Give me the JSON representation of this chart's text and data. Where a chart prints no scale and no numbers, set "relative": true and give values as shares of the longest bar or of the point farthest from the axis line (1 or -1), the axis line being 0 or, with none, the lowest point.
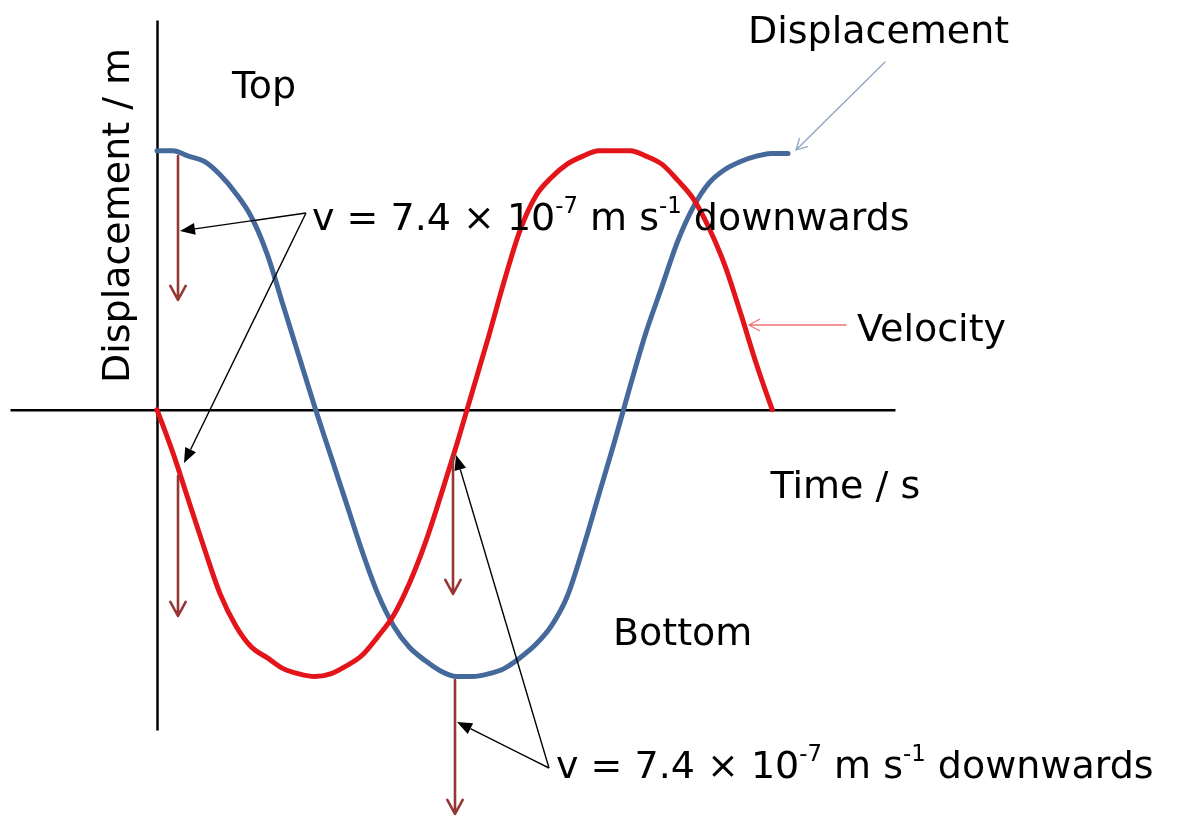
{
  "chart_data": {
    "type": "line",
    "relative": true,
    "xlabel": "Time / s",
    "ylabel": "Displacement / m",
    "categories": [
      null,
      null,
      null,
      null,
      null,
      null,
      null,
      null,
      null,
      null,
      null,
      null,
      null,
      null,
      null,
      null,
      null,
      null,
      null,
      null,
      null,
      null,
      null,
      null,
      null,
      null,
      null,
      null,
      null,
      null,
      null,
      null,
      null,
      null,
      null,
      null,
      null,
      null,
      null,
      null,
      null,
      null,
      null,
      null,
      null,
      null,
      null,
      null,
      null,
      null,
      null,
      null,
      null,
      null,
      null,
      null
    ],
    "series": [
      {
        "name": "Displacement",
        "color": "#45699b",
        "values": [
          null,
          null,
          null,
          null,
          null,
          null,
          null,
          null,
          null,
          0.97,
          0.97,
          0.95,
          0.93,
          0.88,
          0.81,
          0.72,
          0.58,
          0.39,
          0.2,
          0.01,
          -0.17,
          -0.35,
          -0.53,
          -0.69,
          -0.81,
          -0.89,
          -0.94,
          -0.98,
          -1,
          -1,
          -0.99,
          -0.97,
          -0.93,
          -0.88,
          -0.81,
          -0.7,
          -0.52,
          -0.32,
          -0.12,
          0.09,
          0.29,
          0.46,
          0.63,
          0.76,
          0.85,
          0.9,
          0.93,
          0.95,
          0.96,
          0.96,
          null,
          null,
          null,
          null,
          null,
          null
        ]
      },
      {
        "name": "Velocity",
        "color": "#e3151b",
        "values": [
          null,
          null,
          null,
          null,
          null,
          null,
          null,
          null,
          null,
          0,
          -0.16,
          -0.34,
          -0.52,
          -0.69,
          -0.81,
          -0.89,
          -0.93,
          -0.97,
          -0.99,
          -1,
          -0.99,
          -0.96,
          -0.92,
          -0.85,
          -0.77,
          -0.65,
          -0.5,
          -0.32,
          -0.13,
          0.07,
          0.27,
          0.48,
          0.67,
          0.8,
          0.87,
          0.92,
          0.95,
          0.97,
          0.97,
          0.97,
          0.95,
          0.92,
          0.86,
          0.79,
          0.68,
          0.54,
          0.36,
          0.17,
          0,
          null,
          null,
          null,
          null,
          null,
          null,
          null
        ]
      }
    ],
    "annotations": [
      "Top",
      "Bottom",
      "v = 7.4 × 10$^{-7}$ m s$^{-1}$ downwards",
      "v = 7.4 × 10$^{-7}$ m s$^{-1}$ downwards"
    ],
    "legend": false,
    "grid": false,
    "line_style": "solid"
  }
}
